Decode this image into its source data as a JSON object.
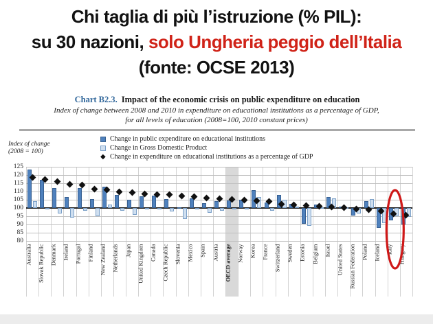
{
  "slide": {
    "title_line1": "Chi taglia di più l’istruzione (% PIL):",
    "title_line2_black": "su 30 nazioni,",
    "title_line2_red": "solo Ungheria peggio dell’Italia",
    "title_line3": "(fonte: OCSE 2013)",
    "highlight_color": "#d02318"
  },
  "chart_header": {
    "label": "Chart B2.3.",
    "label_color": "#31679b",
    "title": "Impact of the economic crisis on public expenditure on education",
    "subtitle_line1": "Index of change between 2008 and 2010 in expenditure on educational institutions as a percentage of GDP,",
    "subtitle_line2": "for all levels of education (2008=100, 2010 constant prices)"
  },
  "axis": {
    "label_line1": "Index of change",
    "label_line2": "(2008 = 100)"
  },
  "chart_data": {
    "type": "bar",
    "title": "Impact of the economic crisis on public expenditure on education",
    "ylabel": "Index of change (2008 = 100)",
    "ylim": [
      80,
      125
    ],
    "ytick_step": 5,
    "yticks": [
      125,
      120,
      115,
      110,
      105,
      100,
      95,
      90,
      85,
      80
    ],
    "baseline": 100,
    "grid": true,
    "legend_position": "top-left",
    "categories": [
      "Australia",
      "Slovak Republic",
      "Denmark",
      "Ireland",
      "Portugal",
      "Finland",
      "New Zealand",
      "Netherlands",
      "Japan",
      "United Kingdom",
      "Canada",
      "Czech Republic",
      "Slovenia",
      "Mexico",
      "Spain",
      "Austria",
      "OECD average",
      "Norway",
      "Korea",
      "France",
      "Switzerland",
      "Sweden",
      "Estonia",
      "Belgium",
      "Israel",
      "United States",
      "Russian Federation",
      "Poland",
      "Iceland",
      "Italy",
      "Hungary"
    ],
    "series": [
      {
        "name": "Change in public expenditure on educational institutions",
        "kind": "bar",
        "color": "#4f81bd",
        "values": [
          123.5,
          117,
          112,
          106.5,
          112,
          105.5,
          113,
          108,
          105,
          107,
          107.5,
          105.5,
          100.5,
          106,
          103,
          104,
          104.5,
          105,
          111,
          103.5,
          108,
          102.5,
          90.5,
          102,
          106.5,
          101,
          95.5,
          104,
          88,
          92.5,
          90
        ]
      },
      {
        "name": "Change in Gross Domestic Product",
        "kind": "bar",
        "color": "#cfdff0",
        "values": [
          104,
          99.5,
          96.5,
          94,
          98.5,
          95,
          102,
          98.5,
          96,
          99,
          99.5,
          98,
          93.5,
          99,
          97,
          98.5,
          99.5,
          99.5,
          106.5,
          98.5,
          105,
          101,
          89,
          100.5,
          106,
          100.5,
          96.5,
          105.5,
          91,
          95,
          94.5
        ]
      },
      {
        "name": "Change in expenditure on educational institutions as a percentage of GDP",
        "kind": "diamond",
        "color": "#111111",
        "values": [
          118.5,
          117.5,
          116,
          114.5,
          114,
          111.5,
          111,
          110,
          109.5,
          108.5,
          108.2,
          108,
          107.5,
          107,
          106.2,
          105.7,
          105.2,
          105,
          104.3,
          104,
          102.5,
          102,
          101.5,
          101,
          100.7,
          100.1,
          99.3,
          99,
          98,
          96.5,
          95.5
        ]
      }
    ],
    "highlighted_category": "OECD average",
    "highlight_band_color": "#d9d9d9",
    "circled_category": "Italy",
    "annotation_color": "#cf1818"
  }
}
